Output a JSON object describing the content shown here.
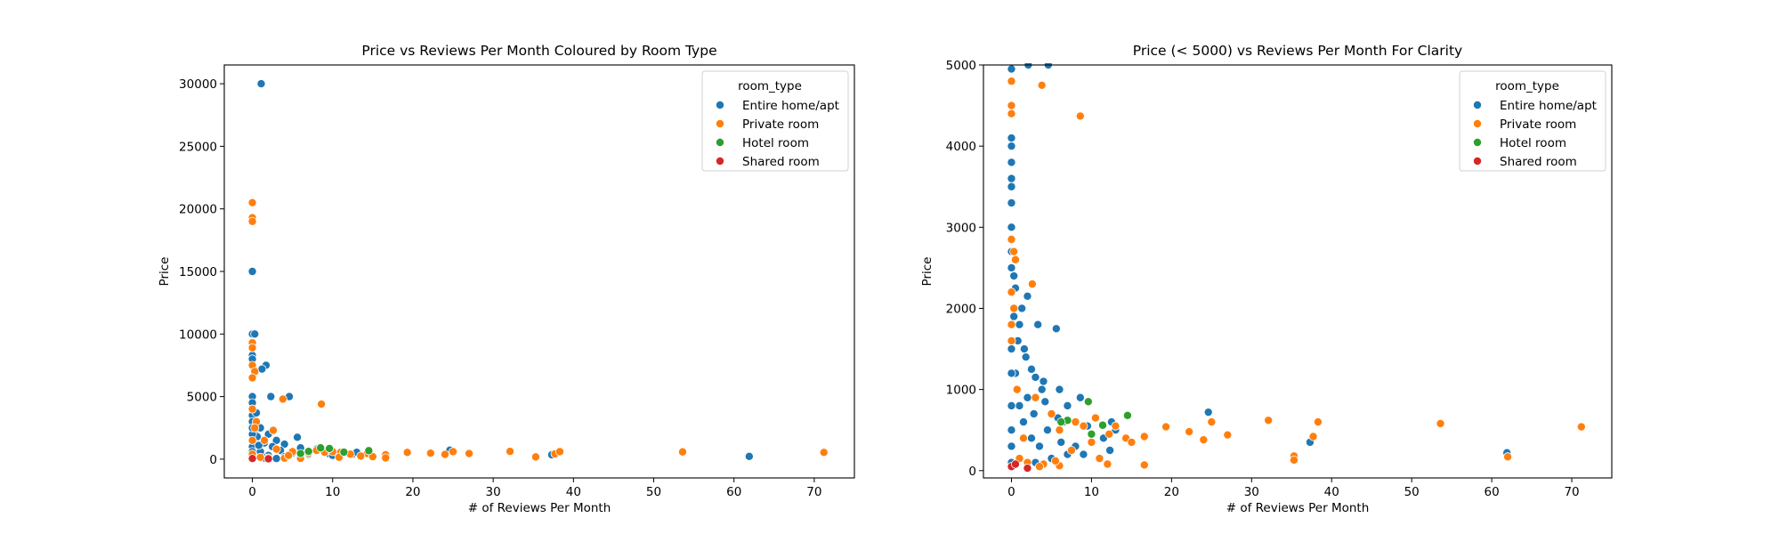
{
  "chart_data": [
    {
      "type": "scatter",
      "title": "Price vs Reviews Per Month Coloured by Room Type",
      "xlabel": "# of Reviews Per Month",
      "ylabel": "Price",
      "xlim": [
        -3.5,
        75
      ],
      "ylim": [
        -1500,
        31500
      ],
      "xticks": [
        0,
        10,
        20,
        30,
        40,
        50,
        60,
        70
      ],
      "yticks": [
        0,
        5000,
        10000,
        15000,
        20000,
        25000,
        30000
      ],
      "grid": false,
      "legend": {
        "title": "room_type",
        "placement": "top-right"
      },
      "series": [
        {
          "name": "Entire home/apt",
          "color": "#1f77b4",
          "points": [
            [
              1.1,
              30000
            ],
            [
              0,
              15000
            ],
            [
              0,
              10000
            ],
            [
              0.3,
              10000
            ],
            [
              0,
              9000
            ],
            [
              0,
              8300
            ],
            [
              0,
              8000
            ],
            [
              1.7,
              7500
            ],
            [
              1.2,
              7200
            ],
            [
              4.6,
              5000
            ],
            [
              2.3,
              5000
            ],
            [
              0,
              5000
            ],
            [
              0,
              4500
            ],
            [
              0,
              4000
            ],
            [
              0,
              3500
            ],
            [
              0,
              3000
            ],
            [
              0.5,
              2800
            ],
            [
              1,
              2500
            ],
            [
              0.2,
              2200
            ],
            [
              2,
              2000
            ],
            [
              0.6,
              1800
            ],
            [
              3,
              1500
            ],
            [
              5.6,
              1750
            ],
            [
              1.5,
              1300
            ],
            [
              4,
              1200
            ],
            [
              2.5,
              1000
            ],
            [
              6,
              900
            ],
            [
              8,
              800
            ],
            [
              3.5,
              700
            ],
            [
              1,
              600
            ],
            [
              5,
              500
            ],
            [
              7,
              400
            ],
            [
              9.5,
              450
            ],
            [
              10,
              300
            ],
            [
              12.5,
              400
            ],
            [
              13,
              550
            ],
            [
              2,
              300
            ],
            [
              4,
              200
            ],
            [
              6,
              150
            ],
            [
              0,
              1000
            ],
            [
              0,
              2000
            ],
            [
              0,
              2500
            ],
            [
              0,
              600
            ],
            [
              0,
              300
            ],
            [
              0,
              100
            ],
            [
              1.5,
              100
            ],
            [
              24.6,
              720
            ],
            [
              37.3,
              350
            ],
            [
              61.9,
              220
            ],
            [
              3,
              50
            ],
            [
              0.5,
              3700
            ],
            [
              0.8,
              1100
            ]
          ]
        },
        {
          "name": "Private room",
          "color": "#ff7f0e",
          "points": [
            [
              0,
              20500
            ],
            [
              0,
              19300
            ],
            [
              0,
              19000
            ],
            [
              0,
              9300
            ],
            [
              0,
              8900
            ],
            [
              0,
              7500
            ],
            [
              0.3,
              7000
            ],
            [
              0,
              6500
            ],
            [
              3.8,
              4800
            ],
            [
              8.6,
              4400
            ],
            [
              0,
              4000
            ],
            [
              0.5,
              3000
            ],
            [
              2.6,
              2300
            ],
            [
              0.3,
              2500
            ],
            [
              1.5,
              1500
            ],
            [
              3,
              800
            ],
            [
              5,
              600
            ],
            [
              7,
              500
            ],
            [
              8,
              700
            ],
            [
              9,
              550
            ],
            [
              10,
              600
            ],
            [
              11,
              550
            ],
            [
              12.2,
              400
            ],
            [
              14.3,
              450
            ],
            [
              16.6,
              350
            ],
            [
              16.6,
              100
            ],
            [
              19.3,
              540
            ],
            [
              22.2,
              480
            ],
            [
              24,
              380
            ],
            [
              25,
              600
            ],
            [
              27,
              450
            ],
            [
              32.1,
              620
            ],
            [
              35.3,
              180
            ],
            [
              37.7,
              420
            ],
            [
              38.3,
              600
            ],
            [
              53.6,
              580
            ],
            [
              71.2,
              540
            ],
            [
              2,
              100
            ],
            [
              4,
              80
            ],
            [
              6,
              60
            ],
            [
              1,
              150
            ],
            [
              0,
              50
            ],
            [
              0,
              400
            ],
            [
              0,
              1500
            ],
            [
              4.5,
              300
            ],
            [
              10.8,
              150
            ],
            [
              13.5,
              250
            ],
            [
              15,
              200
            ]
          ]
        },
        {
          "name": "Hotel room",
          "color": "#2ca02c",
          "points": [
            [
              8.5,
              900
            ],
            [
              9.6,
              850
            ],
            [
              14.5,
              680
            ],
            [
              7,
              620
            ],
            [
              11.4,
              560
            ],
            [
              6,
              450
            ]
          ]
        },
        {
          "name": "Shared room",
          "color": "#d62728",
          "points": [
            [
              0,
              50
            ],
            [
              2,
              30
            ]
          ]
        }
      ]
    },
    {
      "type": "scatter",
      "title": "Price (< 5000) vs Reviews Per Month For Clarity",
      "xlabel": "# of Reviews Per Month",
      "ylabel": "Price",
      "xlim": [
        -3.5,
        75
      ],
      "ylim": [
        -90,
        5000
      ],
      "xticks": [
        0,
        10,
        20,
        30,
        40,
        50,
        60,
        70
      ],
      "yticks": [
        0,
        1000,
        2000,
        3000,
        4000,
        5000
      ],
      "grid": false,
      "legend": {
        "title": "room_type",
        "placement": "top-right"
      },
      "series": [
        {
          "name": "Entire home/apt",
          "color": "#1f77b4",
          "points": [
            [
              0,
              4950
            ],
            [
              2.1,
              5000
            ],
            [
              4.6,
              5000
            ],
            [
              0,
              4100
            ],
            [
              0,
              4000
            ],
            [
              0,
              3800
            ],
            [
              0,
              3600
            ],
            [
              0,
              3500
            ],
            [
              0,
              3300
            ],
            [
              0,
              3000
            ],
            [
              0,
              2700
            ],
            [
              0,
              2500
            ],
            [
              0.3,
              2400
            ],
            [
              0.5,
              2250
            ],
            [
              2,
              2150
            ],
            [
              1.3,
              2000
            ],
            [
              0.3,
              1900
            ],
            [
              1,
              1800
            ],
            [
              3.3,
              1800
            ],
            [
              5.6,
              1750
            ],
            [
              1.6,
              1500
            ],
            [
              2.5,
              1250
            ],
            [
              3,
              1150
            ],
            [
              4,
              1100
            ],
            [
              6,
              1000
            ],
            [
              8.6,
              900
            ],
            [
              7,
              800
            ],
            [
              5,
              700
            ],
            [
              6.5,
              600
            ],
            [
              9.5,
              550
            ],
            [
              10,
              450
            ],
            [
              12.5,
              600
            ],
            [
              13,
              500
            ],
            [
              11.5,
              400
            ],
            [
              8,
              300
            ],
            [
              7,
              200
            ],
            [
              5,
              150
            ],
            [
              3,
              100
            ],
            [
              1,
              800
            ],
            [
              2,
              900
            ],
            [
              0.5,
              1200
            ],
            [
              1.5,
              600
            ],
            [
              2.5,
              400
            ],
            [
              3.5,
              300
            ],
            [
              0,
              1500
            ],
            [
              0,
              1200
            ],
            [
              0,
              800
            ],
            [
              0,
              500
            ],
            [
              0,
              300
            ],
            [
              0,
              100
            ],
            [
              24.6,
              720
            ],
            [
              37.3,
              350
            ],
            [
              61.9,
              220
            ],
            [
              4.5,
              500
            ],
            [
              3.8,
              1000
            ],
            [
              6.2,
              350
            ],
            [
              9,
              200
            ],
            [
              12.3,
              250
            ],
            [
              2.8,
              700
            ],
            [
              1.8,
              1400
            ],
            [
              0.8,
              1600
            ],
            [
              4.2,
              850
            ],
            [
              5.8,
              650
            ]
          ]
        },
        {
          "name": "Private room",
          "color": "#ff7f0e",
          "points": [
            [
              0,
              4800
            ],
            [
              3.8,
              4750
            ],
            [
              0,
              4500
            ],
            [
              0,
              4400
            ],
            [
              8.6,
              4370
            ],
            [
              0,
              2850
            ],
            [
              0.3,
              2700
            ],
            [
              0.5,
              2600
            ],
            [
              2.6,
              2300
            ],
            [
              0,
              2200
            ],
            [
              0.3,
              2000
            ],
            [
              0,
              1800
            ],
            [
              0,
              1600
            ],
            [
              3,
              900
            ],
            [
              5,
              700
            ],
            [
              6,
              500
            ],
            [
              8,
              600
            ],
            [
              9,
              550
            ],
            [
              10.5,
              650
            ],
            [
              12.2,
              450
            ],
            [
              14.3,
              400
            ],
            [
              15,
              350
            ],
            [
              16.6,
              420
            ],
            [
              16.6,
              70
            ],
            [
              19.3,
              540
            ],
            [
              22.2,
              480
            ],
            [
              24,
              380
            ],
            [
              25,
              600
            ],
            [
              27,
              440
            ],
            [
              32.1,
              620
            ],
            [
              35.3,
              180
            ],
            [
              35.3,
              130
            ],
            [
              37.7,
              420
            ],
            [
              38.3,
              600
            ],
            [
              53.6,
              580
            ],
            [
              71.2,
              540
            ],
            [
              62,
              170
            ],
            [
              2,
              100
            ],
            [
              4,
              80
            ],
            [
              6,
              60
            ],
            [
              1,
              150
            ],
            [
              0,
              50
            ],
            [
              5.5,
              120
            ],
            [
              7.5,
              250
            ],
            [
              11,
              150
            ],
            [
              12,
              80
            ],
            [
              13,
              550
            ],
            [
              10,
              350
            ],
            [
              3.5,
              50
            ],
            [
              1.5,
              400
            ],
            [
              0.7,
              1000
            ]
          ]
        },
        {
          "name": "Hotel room",
          "color": "#2ca02c",
          "points": [
            [
              9.6,
              850
            ],
            [
              14.5,
              680
            ],
            [
              7,
              620
            ],
            [
              6.2,
              600
            ],
            [
              11.4,
              560
            ],
            [
              10,
              450
            ]
          ]
        },
        {
          "name": "Shared room",
          "color": "#d62728",
          "points": [
            [
              0,
              50
            ],
            [
              2,
              30
            ],
            [
              0.5,
              80
            ]
          ]
        }
      ]
    }
  ]
}
